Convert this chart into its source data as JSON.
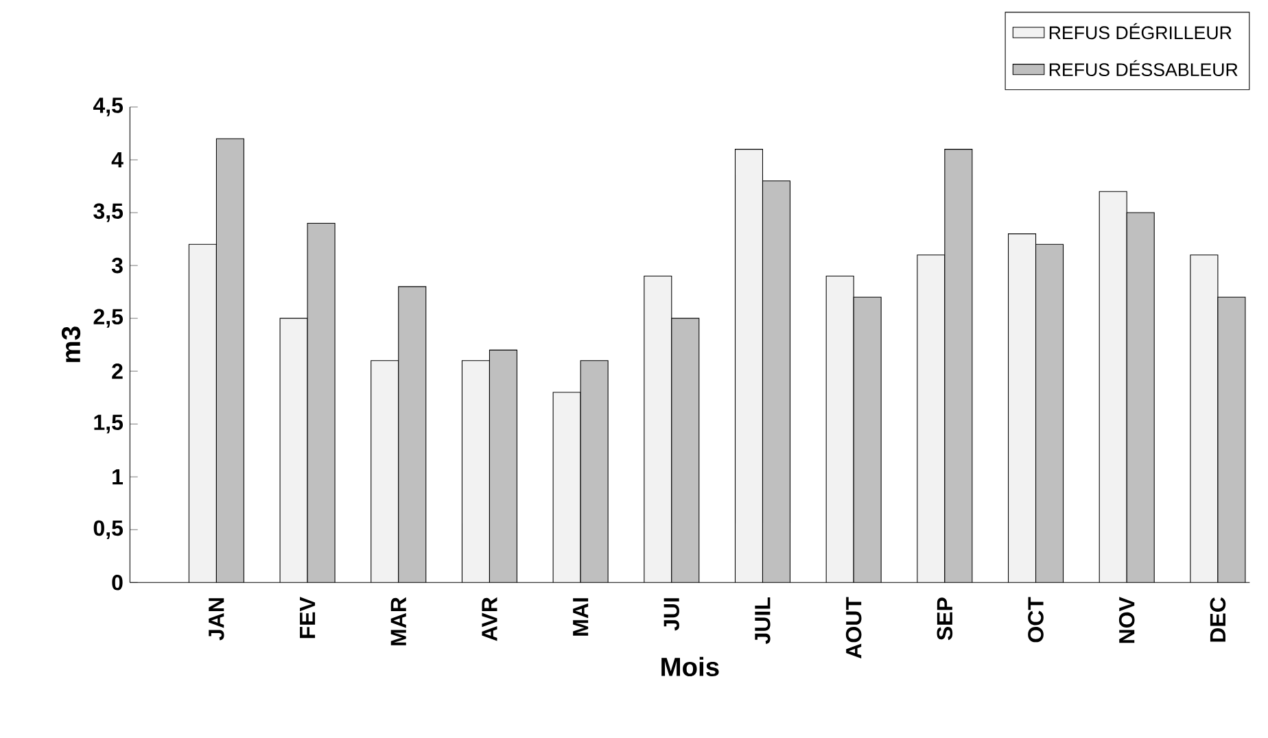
{
  "chart_data": {
    "type": "bar",
    "xlabel": "Mois",
    "ylabel": "m3",
    "categories": [
      "JAN",
      "FEV",
      "MAR",
      "AVR",
      "MAI",
      "JUI",
      "JUIL",
      "AOUT",
      "SEP",
      "OCT",
      "NOV",
      "DEC"
    ],
    "series": [
      {
        "name": "REFUS DÉGRILLEUR",
        "color": "#f2f2f2",
        "values": [
          3.2,
          2.5,
          2.1,
          2.1,
          1.8,
          2.9,
          4.1,
          2.9,
          3.1,
          3.3,
          3.7,
          3.1
        ]
      },
      {
        "name": "REFUS DÉSSABLEUR",
        "color": "#bfbfbf",
        "values": [
          4.2,
          3.4,
          2.8,
          2.2,
          2.1,
          2.5,
          3.8,
          2.7,
          4.1,
          3.2,
          3.5,
          2.7
        ]
      }
    ],
    "ylim": [
      0,
      4.5
    ],
    "yticks": [
      0,
      {
        "value": 0.5,
        "label": "0,5"
      },
      1,
      {
        "value": 1.5,
        "label": "1,5"
      },
      2,
      {
        "value": 2.5,
        "label": "2,5"
      },
      3,
      {
        "value": 3.5,
        "label": "3,5"
      },
      4,
      {
        "value": 4.5,
        "label": "4,5"
      }
    ],
    "legend": "top right"
  }
}
